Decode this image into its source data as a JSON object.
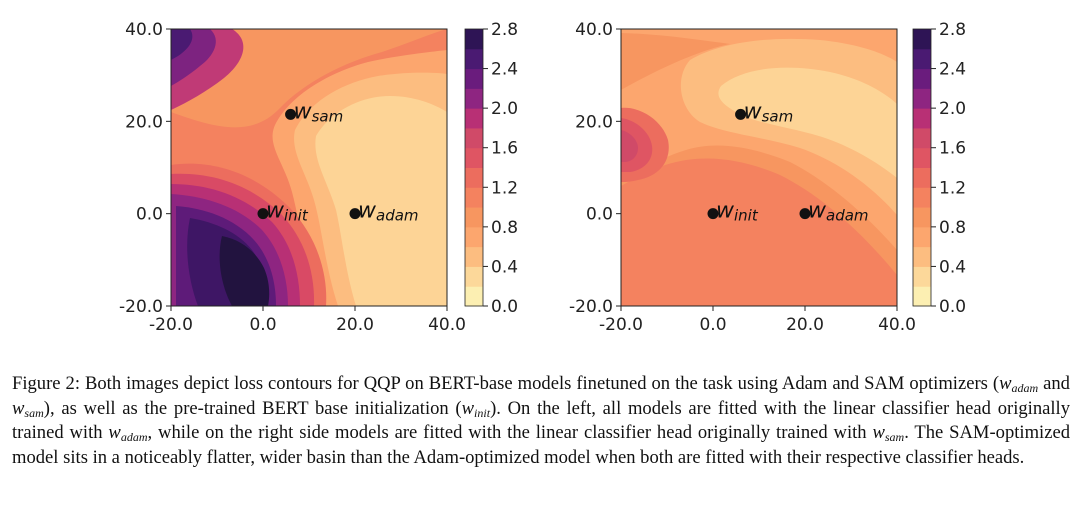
{
  "figure": {
    "caption": {
      "label": "Figure 2:",
      "t1": " Both images depict loss contours for QQP on BERT-base models finetuned on the task using Adam and SAM optimizers (",
      "t2": " and ",
      "t3": "), as well as the pre-trained BERT base initialization (",
      "t4": "). On the left, all models are fitted with the linear classifier head originally trained with ",
      "t5": ", while on the right side models are fitted with the linear classifier head originally trained with ",
      "t6": ". The SAM-optimized model sits in a noticeably flatter, wider basin than the Adam-optimized model when both are fitted with their respective classifier heads.",
      "w": "w",
      "adam": "adam",
      "sam": "sam",
      "init": "init"
    }
  },
  "chart_data": [
    {
      "type": "heatmap",
      "title": "",
      "panel": "left",
      "classifier_head": "w_adam",
      "xlim": [
        -20,
        40
      ],
      "ylim": [
        -20,
        40
      ],
      "xticks": [
        "-20.0",
        "0.0",
        "20.0",
        "40.0"
      ],
      "yticks": [
        "-20.0",
        "0.0",
        "20.0",
        "40.0"
      ],
      "colorbar": {
        "min": 0.0,
        "max": 2.8,
        "ticks": [
          "0.0",
          "0.4",
          "0.8",
          "1.2",
          "1.6",
          "2.0",
          "2.4",
          "2.8"
        ]
      },
      "points": [
        {
          "name": "w_sam",
          "x": 6,
          "y": 21.5,
          "label_main": "w",
          "label_sub": "sam"
        },
        {
          "name": "w_init",
          "x": 0,
          "y": 0,
          "label_main": "w",
          "label_sub": "init"
        },
        {
          "name": "w_adam",
          "x": 20,
          "y": 0,
          "label_main": "w",
          "label_sub": "adam"
        }
      ]
    },
    {
      "type": "heatmap",
      "title": "",
      "panel": "right",
      "classifier_head": "w_sam",
      "xlim": [
        -20,
        40
      ],
      "ylim": [
        -20,
        40
      ],
      "xticks": [
        "-20.0",
        "0.0",
        "20.0",
        "40.0"
      ],
      "yticks": [
        "-20.0",
        "0.0",
        "20.0",
        "40.0"
      ],
      "colorbar": {
        "min": 0.0,
        "max": 2.8,
        "ticks": [
          "0.0",
          "0.4",
          "0.8",
          "1.2",
          "1.6",
          "2.0",
          "2.4",
          "2.8"
        ]
      },
      "points": [
        {
          "name": "w_sam",
          "x": 6,
          "y": 21.5,
          "label_main": "w",
          "label_sub": "sam"
        },
        {
          "name": "w_init",
          "x": 0,
          "y": 0,
          "label_main": "w",
          "label_sub": "init"
        },
        {
          "name": "w_adam",
          "x": 20,
          "y": 0,
          "label_main": "w",
          "label_sub": "adam"
        }
      ]
    }
  ]
}
